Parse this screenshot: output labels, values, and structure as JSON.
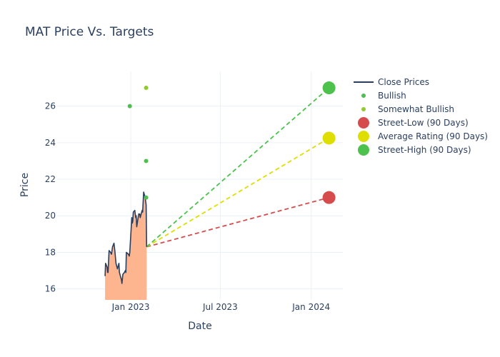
{
  "chart_data": {
    "type": "line",
    "title": "MAT Price Vs. Targets",
    "xlabel": "Date",
    "ylabel": "Price",
    "xlim": [
      "2022-08-05",
      "2024-03-05"
    ],
    "ylim": [
      15.4,
      27.9
    ],
    "x_ticks": [
      {
        "value": "2023-01-01",
        "label": "Jan 2023"
      },
      {
        "value": "2023-07-01",
        "label": "Jul 2023"
      },
      {
        "value": "2024-01-01",
        "label": "Jan 2024"
      }
    ],
    "y_ticks": [
      16,
      18,
      20,
      22,
      24,
      26
    ],
    "grid": true,
    "legend_position": "right",
    "colors": {
      "close": "#2a3f5f",
      "area_fill": "#fdb58f",
      "bullish": "#4fbd4f",
      "somewhat_bullish": "#8fca2f",
      "street_low": "#d64c4c",
      "average": "#dede00",
      "street_high": "#4cc24c"
    },
    "legend": [
      {
        "key": "close",
        "label": "Close Prices",
        "symbol": "line"
      },
      {
        "key": "bullish",
        "label": "Bullish",
        "symbol": "small-dot"
      },
      {
        "key": "somewhat_bullish",
        "label": "Somewhat Bullish",
        "symbol": "small-dot"
      },
      {
        "key": "street_low",
        "label": "Street-Low (90 Days)",
        "symbol": "big-dot"
      },
      {
        "key": "average",
        "label": "Average Rating (90 Days)",
        "symbol": "big-dot"
      },
      {
        "key": "street_high",
        "label": "Street-High (90 Days)",
        "symbol": "big-dot"
      }
    ],
    "series": [
      {
        "name": "Close Prices",
        "key": "close",
        "points": [
          [
            "2022-11-10",
            16.7
          ],
          [
            "2022-11-11",
            17.4
          ],
          [
            "2022-11-14",
            17.2
          ],
          [
            "2022-11-15",
            16.9
          ],
          [
            "2022-11-16",
            16.9
          ],
          [
            "2022-11-18",
            18.1
          ],
          [
            "2022-11-21",
            18.0
          ],
          [
            "2022-11-23",
            17.9
          ],
          [
            "2022-11-25",
            18.3
          ],
          [
            "2022-11-28",
            18.5
          ],
          [
            "2022-11-30",
            18.0
          ],
          [
            "2022-12-02",
            17.4
          ],
          [
            "2022-12-05",
            17.1
          ],
          [
            "2022-12-07",
            17.3
          ],
          [
            "2022-12-08",
            17.4
          ],
          [
            "2022-12-09",
            16.9
          ],
          [
            "2022-12-12",
            16.6
          ],
          [
            "2022-12-13",
            16.5
          ],
          [
            "2022-12-14",
            16.3
          ],
          [
            "2022-12-16",
            16.8
          ],
          [
            "2022-12-19",
            16.9
          ],
          [
            "2022-12-21",
            17.0
          ],
          [
            "2022-12-22",
            16.9
          ],
          [
            "2022-12-23",
            18.0
          ],
          [
            "2022-12-27",
            17.9
          ],
          [
            "2022-12-29",
            17.8
          ],
          [
            "2022-12-30",
            18.0
          ],
          [
            "2023-01-03",
            19.9
          ],
          [
            "2023-01-04",
            19.6
          ],
          [
            "2023-01-05",
            19.7
          ],
          [
            "2023-01-06",
            20.2
          ],
          [
            "2023-01-09",
            20.3
          ],
          [
            "2023-01-11",
            19.9
          ],
          [
            "2023-01-12",
            20.0
          ],
          [
            "2023-01-13",
            19.4
          ],
          [
            "2023-01-17",
            20.1
          ],
          [
            "2023-01-19",
            20.1
          ],
          [
            "2023-01-20",
            19.9
          ],
          [
            "2023-01-23",
            20.2
          ],
          [
            "2023-01-24",
            20.3
          ],
          [
            "2023-01-25",
            20.2
          ],
          [
            "2023-01-27",
            21.3
          ],
          [
            "2023-01-30",
            21.0
          ],
          [
            "2023-01-31",
            20.8
          ],
          [
            "2023-02-01",
            20.6
          ],
          [
            "2023-02-02",
            18.3
          ]
        ]
      },
      {
        "name": "Bullish",
        "key": "bullish",
        "points": [
          [
            "2022-12-30",
            26
          ],
          [
            "2023-02-01",
            23
          ],
          [
            "2023-02-01",
            21
          ]
        ]
      },
      {
        "name": "Somewhat Bullish",
        "key": "somewhat_bullish",
        "points": [
          [
            "2023-02-01",
            27
          ]
        ]
      },
      {
        "name": "Street-Low (90 Days)",
        "key": "street_low",
        "points": [
          [
            "2024-02-06",
            21
          ]
        ]
      },
      {
        "name": "Average Rating (90 Days)",
        "key": "average",
        "points": [
          [
            "2024-02-06",
            24.25
          ]
        ]
      },
      {
        "name": "Street-High (90 Days)",
        "key": "street_high",
        "points": [
          [
            "2024-02-06",
            27
          ]
        ]
      }
    ],
    "projections": [
      {
        "key": "street_low",
        "from": [
          "2023-02-02",
          18.3
        ],
        "to": [
          "2024-02-06",
          21
        ]
      },
      {
        "key": "average",
        "from": [
          "2023-02-02",
          18.3
        ],
        "to": [
          "2024-02-06",
          24.25
        ]
      },
      {
        "key": "street_high",
        "from": [
          "2023-02-02",
          18.3
        ],
        "to": [
          "2024-02-06",
          27
        ]
      }
    ]
  }
}
